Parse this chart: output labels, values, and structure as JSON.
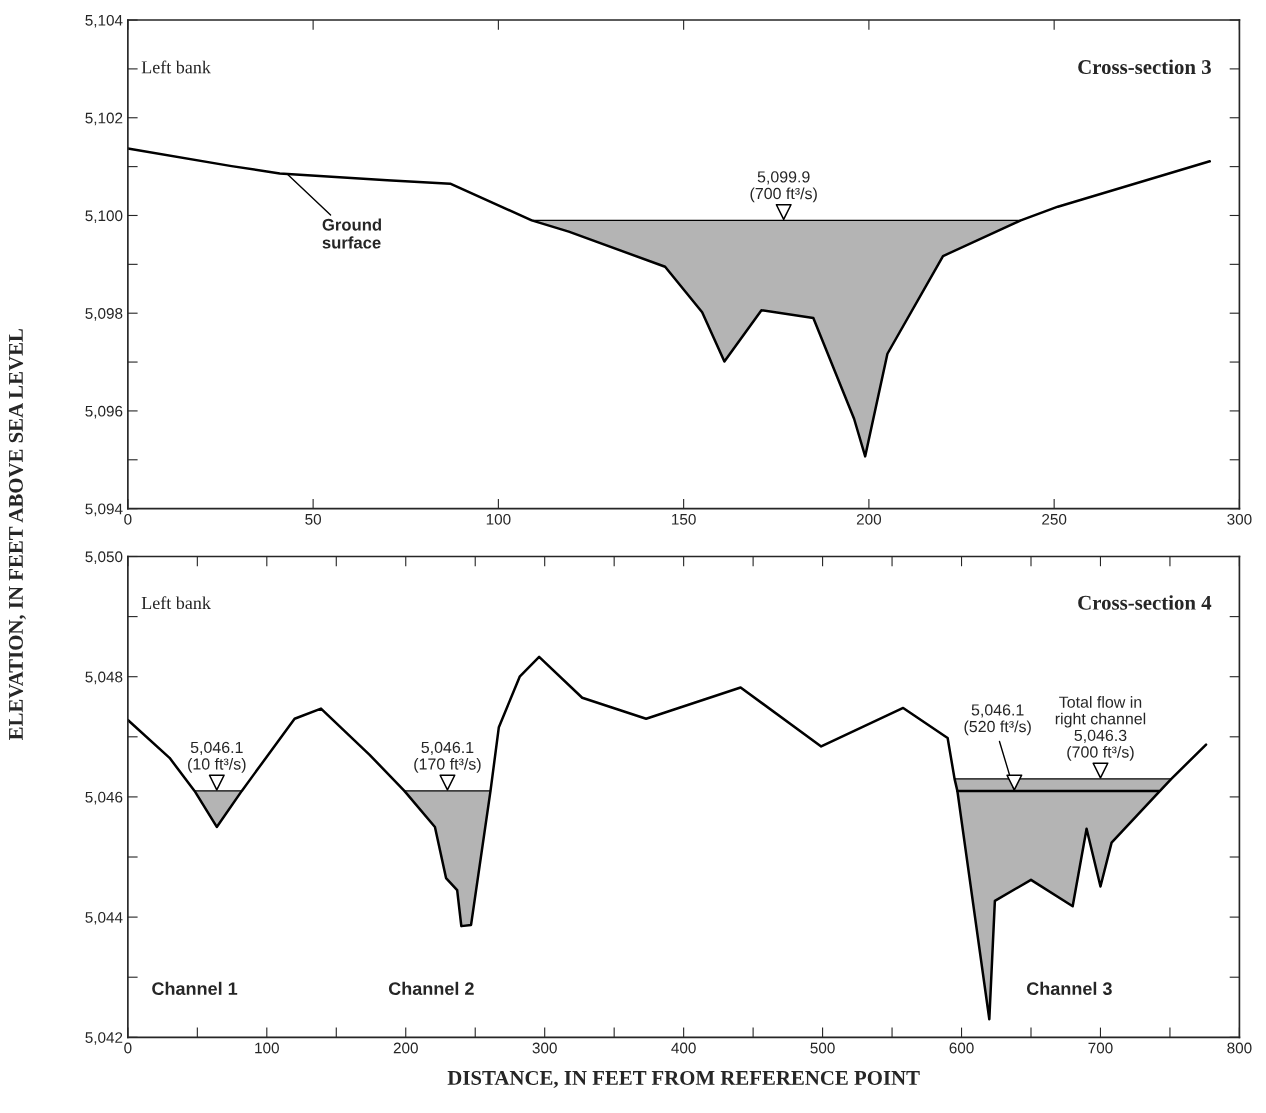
{
  "chart_data": [
    {
      "type": "line",
      "title": "Cross-section 3",
      "ylabel": "ELEVATION, IN FEET ABOVE SEA LEVEL",
      "annotations": [
        "Left bank",
        {
          "text": "Ground\nsurface",
          "x": 43,
          "y": 5100.85
        },
        {
          "text": "5,099.9\n(700 ft³/s)",
          "x": 177,
          "y": 5099.9
        }
      ],
      "series": [
        {
          "type": "line",
          "color": "#000000",
          "x": [
            109,
            119,
            145,
            155,
            161,
            171,
            185,
            196,
            199,
            205,
            220,
            241
          ],
          "values": [
            5099.9,
            5099.9,
            5099.9,
            5099.9,
            5099.9,
            5099.9,
            5099.9,
            5099.9,
            5099.9,
            5099.9,
            5099.9,
            5099.9
          ],
          "lower": [
            5099.9,
            5099.67,
            5098.95,
            5098.02,
            5097.01,
            5098.06,
            5097.9,
            5095.84,
            5095.07,
            5097.17,
            5099.17,
            5099.9
          ],
          "upper": [
            5099.9,
            5099.9,
            5099.9,
            5099.9,
            5099.9,
            5099.9,
            5099.9,
            5099.9,
            5099.9,
            5099.9,
            5099.9,
            5099.9
          ]
        },
        {
          "color": "#000000",
          "x": [
            0,
            28,
            41,
            70,
            87,
            109,
            119,
            145,
            155,
            161,
            171,
            185,
            196,
            199,
            205,
            220,
            241,
            251,
            292
          ],
          "values": [
            5101.37,
            5101.01,
            5100.86,
            5100.72,
            5100.65,
            5099.9,
            5099.67,
            5098.95,
            5098.02,
            5097.01,
            5098.06,
            5097.9,
            5095.84,
            5095.07,
            5097.17,
            5099.17,
            5099.9,
            5100.18,
            5101.11
          ]
        }
      ],
      "xlim": [
        0,
        300
      ],
      "xticks": [
        0,
        50,
        100,
        150,
        200,
        250,
        300
      ],
      "ylim": [
        5094,
        5104
      ],
      "yticks": [
        {
          "value": 5094,
          "label": "5,094"
        },
        {
          "value": 5095,
          "label": null
        },
        {
          "value": 5096,
          "label": "5,096"
        },
        {
          "value": 5097,
          "label": null
        },
        {
          "value": 5098,
          "label": "5,098"
        },
        {
          "value": 5099,
          "label": null
        },
        {
          "value": 5100,
          "label": "5,100"
        },
        {
          "value": 5101,
          "label": null
        },
        {
          "value": 5102,
          "label": "5,102"
        },
        {
          "value": 5103,
          "label": null
        },
        {
          "value": 5104,
          "label": "5,104"
        }
      ]
    },
    {
      "type": "line",
      "title": "Cross-section 4",
      "xlabel": "DISTANCE, IN FEET FROM REFERENCE POINT",
      "annotations": [
        "Left bank",
        {
          "text": "5,046.1\n(10 ft³/s)",
          "x": 64,
          "y": 5046.1
        },
        {
          "text": "5,046.1\n(170 ft³/s)",
          "x": 230,
          "y": 5046.1
        },
        {
          "text": "5,046.1\n(520 ft³/s)",
          "x": 638,
          "y": 5046.1
        },
        {
          "text": "Total flow in\nright channel\n5,046.3\n(700 ft³/s)",
          "x": 700,
          "y": 5046.3
        },
        "Channel 1",
        "Channel 2",
        "Channel 3"
      ],
      "series": [
        {
          "type": "line",
          "color": "#000000",
          "x": [
            48,
            64,
            82
          ],
          "values": [
            5046.1,
            5046.1,
            5046.1
          ],
          "lower": [
            5046.1,
            5045.5,
            5046.1
          ],
          "upper": [
            5046.1,
            5046.1,
            5046.1
          ]
        },
        {
          "type": "line",
          "color": "#000000",
          "x": [
            199,
            221,
            229,
            237,
            240,
            247,
            261
          ],
          "values": [
            5046.1,
            5046.1,
            5046.1,
            5046.1,
            5046.1,
            5046.1,
            5046.1
          ],
          "lower": [
            5046.1,
            5045.5,
            5044.65,
            5044.45,
            5043.85,
            5043.87,
            5046.1
          ],
          "upper": [
            5046.1,
            5046.1,
            5046.1,
            5046.1,
            5046.1,
            5046.1,
            5046.1
          ]
        },
        {
          "type": "line",
          "color": "#000000",
          "x": [
            595,
            597,
            620,
            624,
            650,
            680,
            690,
            700,
            708,
            742,
            751
          ],
          "values": [
            5046.3,
            5046.3,
            5046.3,
            5046.3,
            5046.3,
            5046.3,
            5046.3,
            5046.3,
            5046.3,
            5046.3,
            5046.3
          ],
          "lower": [
            5046.3,
            5046.1,
            5042.3,
            5044.27,
            5044.62,
            5044.18,
            5045.47,
            5044.51,
            5045.24,
            5046.08,
            5046.3
          ],
          "upper": [
            5046.3,
            5046.3,
            5046.3,
            5046.3,
            5046.3,
            5046.3,
            5046.3,
            5046.3,
            5046.3,
            5046.3,
            5046.3
          ]
        },
        {
          "type": "line",
          "color": "#000000",
          "x": [
            597,
            742
          ],
          "values": [
            5046.1,
            5046.1
          ]
        },
        {
          "color": "#000000",
          "x": [
            0,
            30,
            48,
            64,
            82,
            120,
            139,
            174,
            199,
            221,
            229,
            237,
            240,
            247,
            261,
            267,
            282,
            296,
            327,
            373,
            441,
            499,
            558,
            590,
            595,
            597,
            620,
            624,
            650,
            680,
            690,
            700,
            708,
            742,
            751,
            776
          ],
          "values": [
            5047.28,
            5046.65,
            5046.1,
            5045.5,
            5046.1,
            5047.3,
            5047.47,
            5046.7,
            5046.1,
            5045.5,
            5044.65,
            5044.45,
            5043.85,
            5043.87,
            5046.1,
            5047.16,
            5048.0,
            5048.33,
            5047.65,
            5047.3,
            5047.82,
            5046.84,
            5047.48,
            5046.98,
            5046.3,
            5046.1,
            5042.3,
            5044.27,
            5044.62,
            5044.18,
            5045.47,
            5044.51,
            5045.24,
            5046.08,
            5046.3,
            5046.87
          ]
        }
      ],
      "xlim": [
        0,
        800
      ],
      "xticks": [
        0,
        {
          "value": 50,
          "label": null
        },
        100,
        {
          "value": 150,
          "label": null
        },
        200,
        {
          "value": 250,
          "label": null
        },
        300,
        {
          "value": 350,
          "label": null
        },
        400,
        {
          "value": 450,
          "label": null
        },
        500,
        {
          "value": 550,
          "label": null
        },
        600,
        {
          "value": 650,
          "label": null
        },
        700,
        {
          "value": 750,
          "label": null
        },
        800
      ],
      "ylim": [
        5042,
        5050
      ],
      "yticks": [
        {
          "value": 5042,
          "label": "5,042"
        },
        {
          "value": 5043,
          "label": null
        },
        {
          "value": 5044,
          "label": "5,044"
        },
        {
          "value": 5045,
          "label": null
        },
        {
          "value": 5046,
          "label": "5,046"
        },
        {
          "value": 5047,
          "label": null
        },
        {
          "value": 5048,
          "label": "5,048"
        },
        {
          "value": 5049,
          "label": null
        },
        {
          "value": 5050,
          "label": "5,050"
        }
      ]
    }
  ]
}
